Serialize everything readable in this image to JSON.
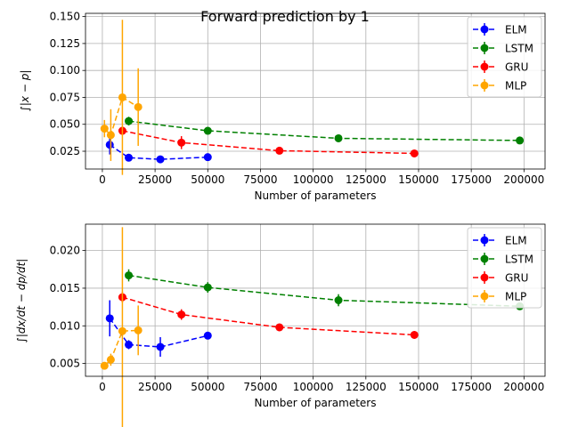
{
  "figure": {
    "title": "Forward prediction by 1"
  },
  "chart_data": [
    {
      "type": "line",
      "xlabel": "Number of parameters",
      "ylabel": "∫|x − p|",
      "xlim": [
        -8000,
        210000
      ],
      "ylim": [
        0.0085,
        0.153
      ],
      "xticks": [
        0,
        25000,
        50000,
        75000,
        100000,
        125000,
        150000,
        175000,
        200000
      ],
      "xtick_labels": [
        "0",
        "25000",
        "50000",
        "75000",
        "100000",
        "125000",
        "150000",
        "175000",
        "200000"
      ],
      "yticks": [
        0.025,
        0.05,
        0.075,
        0.1,
        0.125,
        0.15
      ],
      "ytick_labels": [
        "0.025",
        "0.050",
        "0.075",
        "0.100",
        "0.125",
        "0.150"
      ],
      "grid": true,
      "legend": "top-right",
      "series": [
        {
          "name": "ELM",
          "color": "#0000ff",
          "x": [
            3500,
            12500,
            27500,
            50000
          ],
          "y": [
            0.031,
            0.019,
            0.0175,
            0.0195
          ],
          "err": [
            0.009,
            0.002,
            0.002,
            0.002
          ]
        },
        {
          "name": "LSTM",
          "color": "#008000",
          "x": [
            12500,
            50000,
            112000,
            198000
          ],
          "y": [
            0.053,
            0.044,
            0.037,
            0.035
          ],
          "err": [
            0.004,
            0.003,
            0.002,
            0.002
          ]
        },
        {
          "name": "GRU",
          "color": "#ff0000",
          "x": [
            9500,
            37500,
            84000,
            148000
          ],
          "y": [
            0.044,
            0.033,
            0.0255,
            0.023
          ],
          "err": [
            0.004,
            0.006,
            0.002,
            0.002
          ]
        },
        {
          "name": "MLP",
          "color": "#ffa500",
          "x": [
            1000,
            4000,
            9500,
            17000
          ],
          "y": [
            0.046,
            0.04,
            0.075,
            0.066
          ],
          "err": [
            0.008,
            0.024,
            0.072,
            0.036
          ]
        }
      ]
    },
    {
      "type": "line",
      "xlabel": "Number of parameters",
      "ylabel": "∫|dx/dt − dp/dt|",
      "xlim": [
        -8000,
        210000
      ],
      "ylim": [
        0.0033,
        0.0235
      ],
      "xticks": [
        0,
        25000,
        50000,
        75000,
        100000,
        125000,
        150000,
        175000,
        200000
      ],
      "xtick_labels": [
        "0",
        "25000",
        "50000",
        "75000",
        "100000",
        "125000",
        "150000",
        "175000",
        "200000"
      ],
      "yticks": [
        0.005,
        0.01,
        0.015,
        0.02
      ],
      "ytick_labels": [
        "0.005",
        "0.010",
        "0.015",
        "0.020"
      ],
      "grid": true,
      "legend": "top-right",
      "series": [
        {
          "name": "ELM",
          "color": "#0000ff",
          "x": [
            3500,
            12500,
            27500,
            50000
          ],
          "y": [
            0.011,
            0.0075,
            0.0072,
            0.0087
          ],
          "err": [
            0.0024,
            0.0006,
            0.0013,
            0.0004
          ]
        },
        {
          "name": "LSTM",
          "color": "#008000",
          "x": [
            12500,
            50000,
            112000,
            198000
          ],
          "y": [
            0.0167,
            0.0151,
            0.0134,
            0.0126
          ],
          "err": [
            0.0008,
            0.0007,
            0.0008,
            0.0005
          ]
        },
        {
          "name": "GRU",
          "color": "#ff0000",
          "x": [
            9500,
            37500,
            84000,
            148000
          ],
          "y": [
            0.0138,
            0.0115,
            0.0098,
            0.0088
          ],
          "err": [
            0.0007,
            0.0007,
            0.0004,
            0.0005
          ]
        },
        {
          "name": "MLP",
          "color": "#ffa500",
          "x": [
            1000,
            4000,
            9500,
            17000
          ],
          "y": [
            0.0047,
            0.0055,
            0.0093,
            0.0094
          ],
          "err": [
            0.0004,
            0.0008,
            0.0138,
            0.0033
          ]
        }
      ]
    }
  ]
}
